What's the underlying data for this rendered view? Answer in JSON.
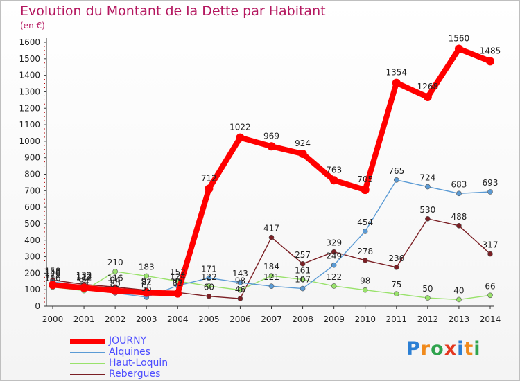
{
  "chart_data": {
    "type": "line",
    "title": "Evolution du Montant de la Dette par Habitant",
    "subtitle": "(en €)",
    "ylim": [
      0,
      1600
    ],
    "yticks": [
      0,
      100,
      200,
      300,
      400,
      500,
      600,
      700,
      800,
      900,
      1000,
      1100,
      1200,
      1300,
      1400,
      1500,
      1600
    ],
    "x": [
      "2000",
      "2001",
      "2002",
      "2003",
      "2004",
      "2005",
      "2006",
      "2007",
      "2008",
      "2009",
      "2010",
      "2011",
      "2012",
      "2013",
      "2014"
    ],
    "grid": false,
    "legend": "bottom-left",
    "series": [
      {
        "name": "JOURNY",
        "color": "#ff0000",
        "values": [
          129,
          112,
          94,
          82,
          77,
          712,
          1022,
          969,
          924,
          763,
          705,
          1354,
          1268,
          1560,
          1485
        ]
      },
      {
        "name": "Alquines",
        "color": "#5b9bd5",
        "values": [
          148,
          123,
          80,
          55,
          124,
          171,
          143,
          121,
          107,
          249,
          454,
          765,
          724,
          683,
          693
        ]
      },
      {
        "name": "Haut-Loquin",
        "color": "#99e26b",
        "values": [
          116,
          94,
          210,
          183,
          152,
          122,
          98,
          184,
          161,
          122,
          98,
          75,
          50,
          40,
          66
        ]
      },
      {
        "name": "Rebergues",
        "color": "#7b1f24",
        "values": [
          158,
          132,
          116,
          97,
          83,
          60,
          46,
          417,
          257,
          329,
          278,
          236,
          530,
          488,
          317
        ]
      }
    ]
  },
  "logo": {
    "letters": [
      "P",
      "r",
      "o",
      "x",
      "i",
      "t",
      "i"
    ],
    "colors": [
      "#2b7fd4",
      "#f08a1c",
      "#2fa34d",
      "#e4371f",
      "#2b7fd4",
      "#f08a1c",
      "#2fa34d"
    ]
  }
}
